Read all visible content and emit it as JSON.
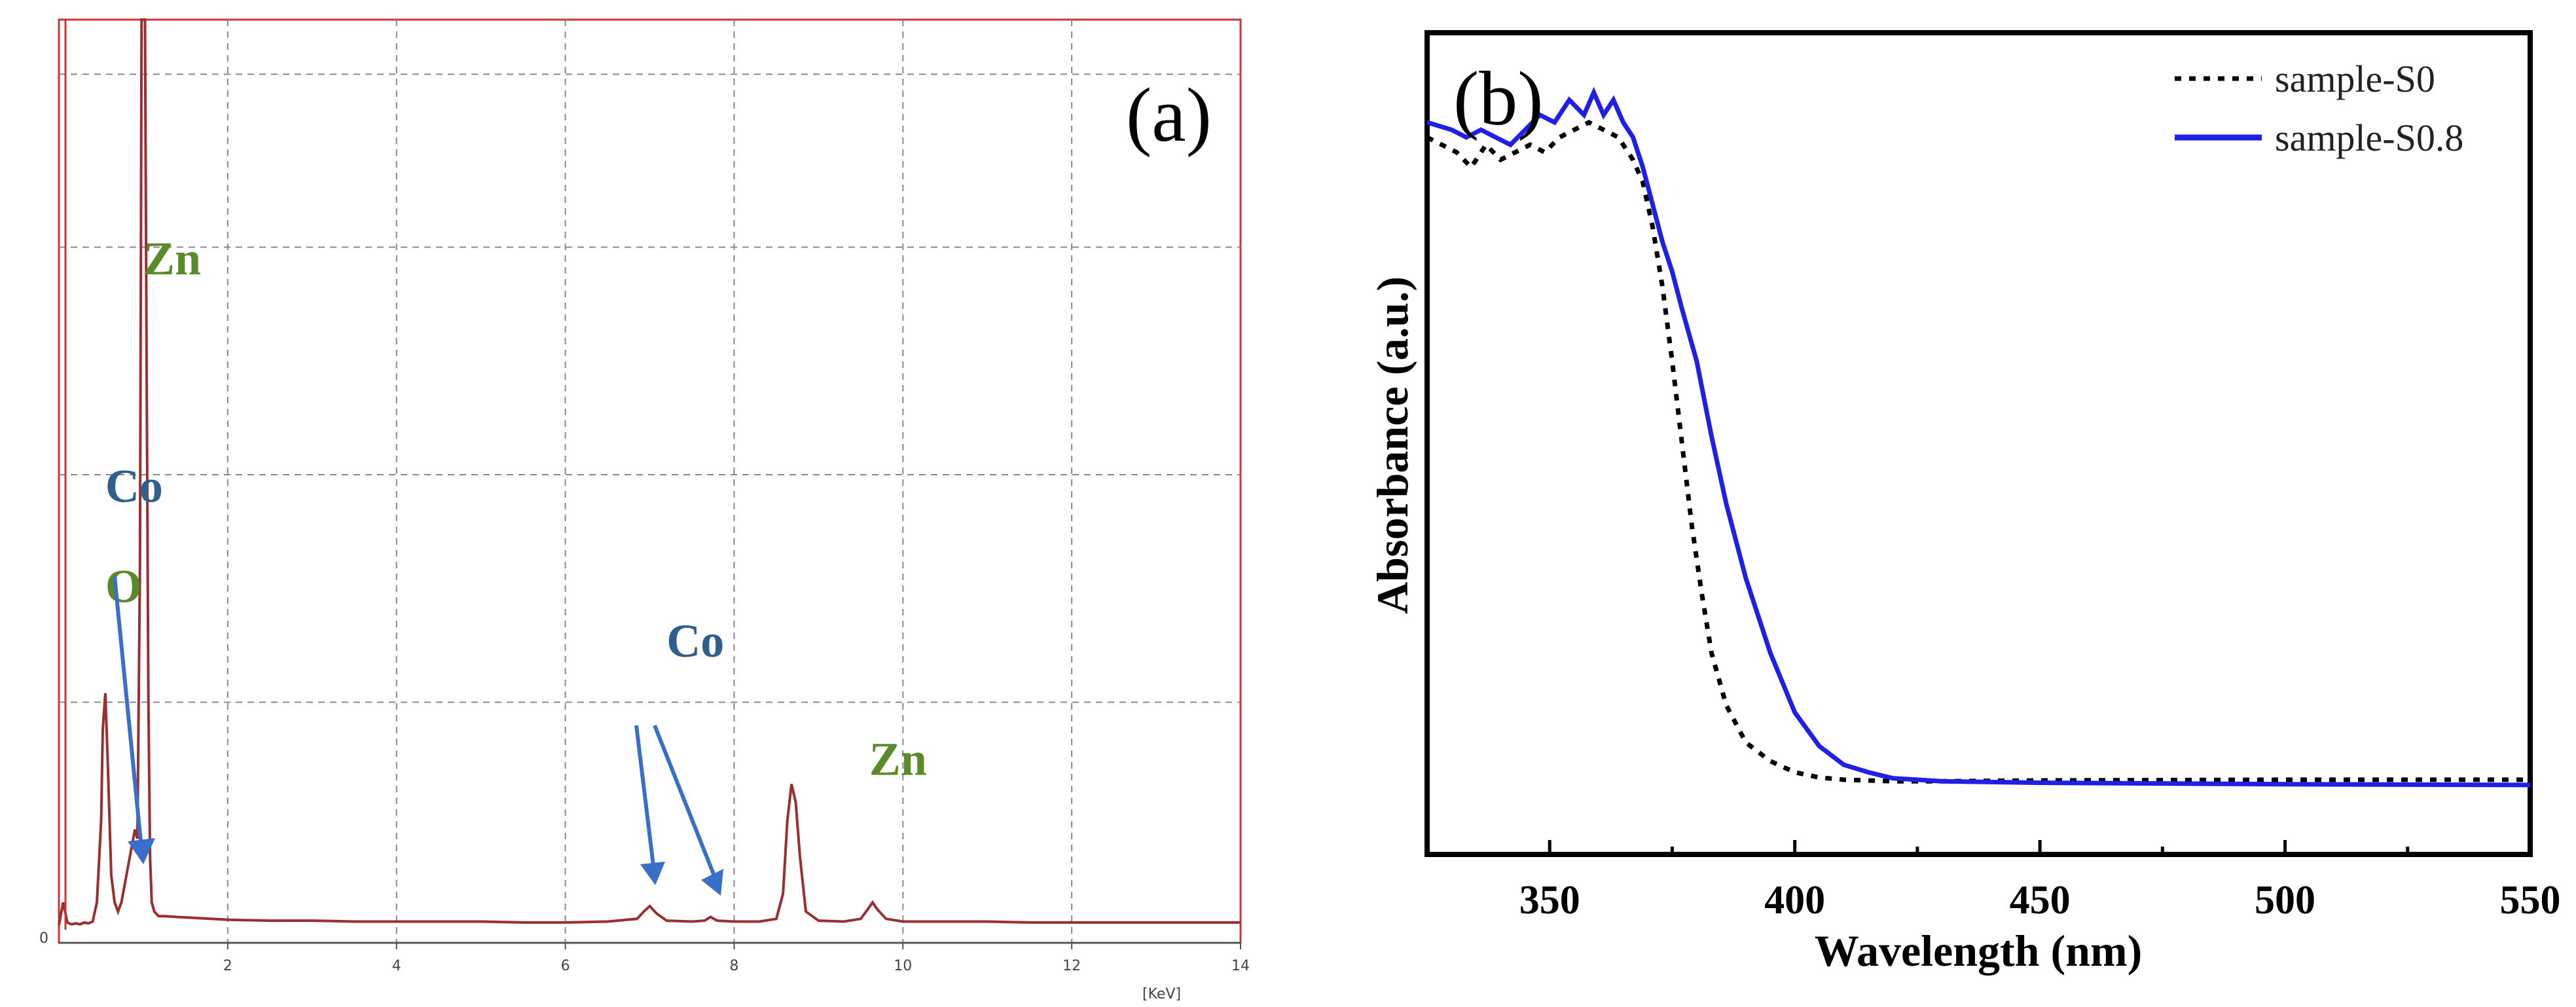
{
  "chart_data": [
    {
      "type": "line",
      "panel_label": "(a)",
      "title": "",
      "xlabel": "[KeV]",
      "ylabel": "",
      "xlim": [
        0,
        14
      ],
      "ylim": [
        0,
        100
      ],
      "x_tick_labels": [
        "2",
        "4",
        "6",
        "8",
        "10",
        "12",
        "14"
      ],
      "y_tick_labels": [
        "0"
      ],
      "grid": true,
      "line_color": "#9a2f2f",
      "series": [
        {
          "name": "EDX spectrum",
          "x": [
            0.0,
            0.05,
            0.1,
            0.15,
            0.2,
            0.25,
            0.3,
            0.35,
            0.4,
            0.45,
            0.5,
            0.52,
            0.55,
            0.58,
            0.62,
            0.66,
            0.7,
            0.74,
            0.78,
            0.82,
            0.86,
            0.9,
            0.93,
            0.96,
            0.98,
            1.0,
            1.02,
            1.04,
            1.06,
            1.08,
            1.1,
            1.13,
            1.18,
            1.25,
            1.4,
            1.6,
            1.8,
            2.0,
            2.5,
            3.0,
            3.5,
            4.0,
            4.5,
            5.0,
            5.5,
            6.0,
            6.5,
            6.85,
            6.93,
            7.0,
            7.08,
            7.2,
            7.5,
            7.65,
            7.72,
            7.8,
            8.0,
            8.3,
            8.5,
            8.58,
            8.63,
            8.68,
            8.73,
            8.78,
            8.85,
            9.0,
            9.3,
            9.5,
            9.58,
            9.64,
            9.7,
            9.8,
            10.0,
            10.5,
            11.0,
            11.5,
            12.0,
            12.5,
            13.0,
            13.5,
            14.0
          ],
          "y": [
            0.5,
            3,
            0.8,
            0.6,
            0.7,
            0.6,
            0.8,
            0.7,
            0.9,
            3,
            12,
            22,
            26,
            18,
            6,
            3,
            2,
            3,
            5,
            7,
            9,
            11,
            10,
            40,
            100,
            100,
            100,
            60,
            25,
            8,
            3,
            2,
            1.5,
            1.5,
            1.4,
            1.3,
            1.2,
            1.1,
            1.0,
            1.0,
            0.9,
            0.9,
            0.9,
            0.9,
            0.8,
            0.8,
            0.9,
            1.2,
            2.0,
            2.6,
            1.8,
            1.0,
            0.9,
            1.0,
            1.4,
            1.0,
            0.9,
            0.9,
            1.2,
            4,
            12,
            16,
            14,
            8,
            2,
            1.0,
            0.9,
            1.2,
            2.2,
            3.0,
            2.2,
            1.2,
            0.9,
            0.9,
            0.9,
            0.8,
            0.8,
            0.8,
            0.8,
            0.8,
            0.8
          ]
        }
      ],
      "annotations": [
        {
          "text": "Zn",
          "element": "zn",
          "x": 1.0,
          "y": 72,
          "color": "#5b8a2a"
        },
        {
          "text": "Co",
          "element": "co",
          "x": 0.55,
          "y": 47,
          "color": "#2e5f8f"
        },
        {
          "text": "O",
          "element": "o",
          "x": 0.55,
          "y": 36,
          "color": "#5b8a2a"
        },
        {
          "text": "Co",
          "element": "co",
          "x": 7.2,
          "y": 30,
          "color": "#2e5f8f"
        },
        {
          "text": "Zn",
          "element": "zn",
          "x": 9.6,
          "y": 17,
          "color": "#5b8a2a"
        }
      ]
    },
    {
      "type": "line",
      "panel_label": "(b)",
      "title": "",
      "xlabel": "Wavelength (nm)",
      "ylabel": "Absorbance (a.u.)",
      "xlim": [
        325,
        550
      ],
      "ylim": [
        0,
        1.1
      ],
      "x_tick_labels": [
        "350",
        "400",
        "450",
        "500",
        "550"
      ],
      "grid": false,
      "legend_position": "top-right",
      "series": [
        {
          "name": "sample-S0",
          "style": "dotted",
          "color": "#000000",
          "x": [
            325,
            328,
            331,
            334,
            337,
            340,
            343,
            346,
            349,
            352,
            355,
            358,
            361,
            364,
            367,
            369,
            371,
            373,
            375,
            377,
            379,
            381,
            383,
            386,
            390,
            395,
            400,
            405,
            410,
            420,
            430,
            450,
            500,
            550
          ],
          "y": [
            0.96,
            0.95,
            0.94,
            0.92,
            0.95,
            0.93,
            0.94,
            0.95,
            0.94,
            0.96,
            0.97,
            0.98,
            0.97,
            0.96,
            0.93,
            0.9,
            0.84,
            0.76,
            0.66,
            0.55,
            0.44,
            0.35,
            0.27,
            0.2,
            0.15,
            0.125,
            0.11,
            0.103,
            0.1,
            0.098,
            0.098,
            0.099,
            0.1,
            0.1
          ]
        },
        {
          "name": "sample-S0.8",
          "style": "solid",
          "color": "#1f1fe6",
          "x": [
            325,
            330,
            333,
            336,
            339,
            342,
            345,
            348,
            351,
            354,
            357,
            359,
            361,
            363,
            365,
            367,
            369,
            371,
            373,
            375,
            377,
            380,
            383,
            386,
            390,
            395,
            400,
            405,
            410,
            415,
            420,
            430,
            450,
            500,
            550
          ],
          "y": [
            0.98,
            0.97,
            0.96,
            0.97,
            0.96,
            0.95,
            0.97,
            0.99,
            0.98,
            1.01,
            0.99,
            1.02,
            0.99,
            1.01,
            0.98,
            0.96,
            0.92,
            0.87,
            0.82,
            0.78,
            0.73,
            0.66,
            0.56,
            0.47,
            0.37,
            0.27,
            0.19,
            0.145,
            0.12,
            0.11,
            0.102,
            0.098,
            0.096,
            0.094,
            0.093
          ]
        }
      ]
    }
  ]
}
